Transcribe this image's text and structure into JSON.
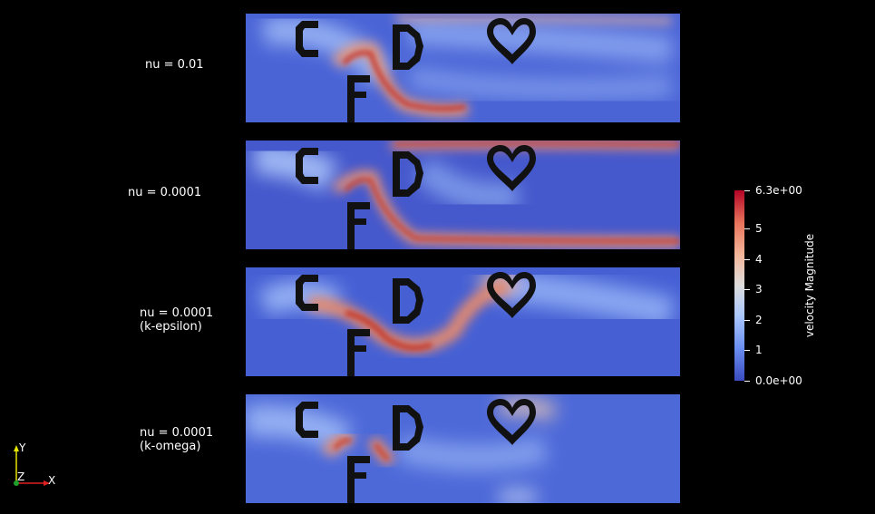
{
  "cases": [
    {
      "label": "nu = 0.01"
    },
    {
      "label": "nu = 0.0001"
    },
    {
      "label": "nu = 0.0001\n(k-epsilon)"
    },
    {
      "label": "nu = 0.0001\n(k-omega)"
    }
  ],
  "obstacle_letters": [
    "C",
    "F",
    "D"
  ],
  "colorbar": {
    "title": "velocity Magnitude",
    "max_label": "6.3e+00",
    "min_label": "0.0e+00",
    "ticks": [
      "5",
      "4",
      "3",
      "2",
      "1"
    ],
    "colormap": [
      "#3b4cc0",
      "#dddddd",
      "#b40426"
    ]
  },
  "axes_triad": {
    "y": "Y",
    "z": "Z",
    "x": "X"
  },
  "colors": {
    "background": "#000000",
    "low": "#3b4cc0",
    "high": "#b40426"
  }
}
